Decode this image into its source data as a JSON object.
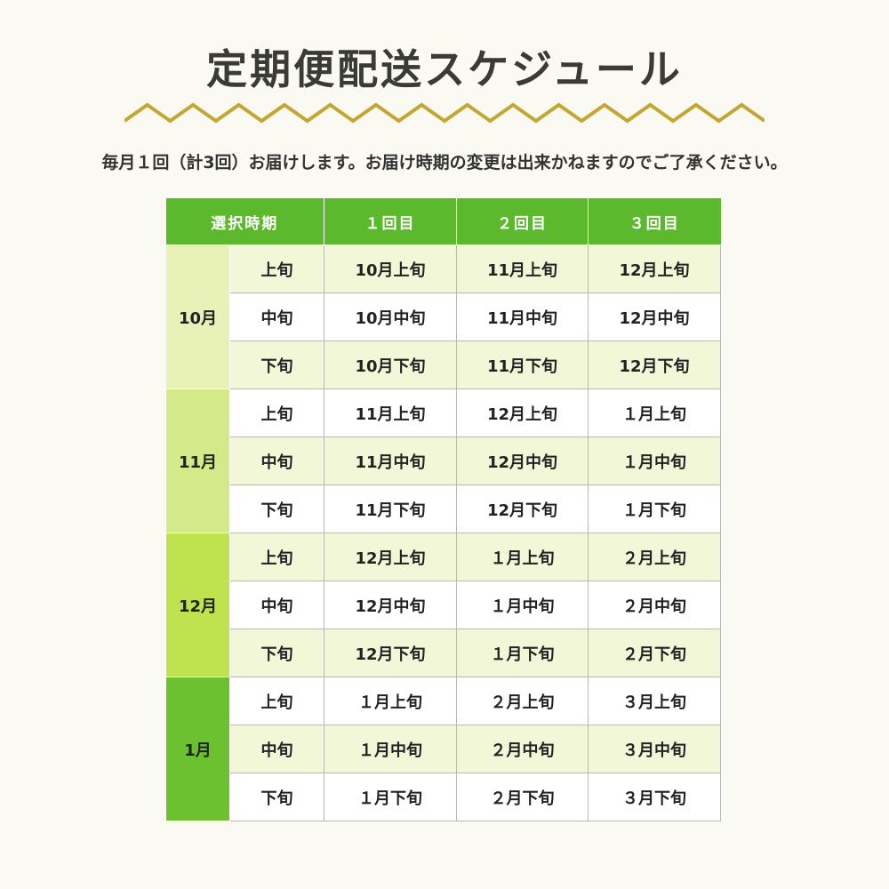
{
  "title": "定期便配送スケジュール",
  "subtitle": "毎月１回（計3回）お届けします。お届け時期の変更は出来かねますのでご了承ください。",
  "colors": {
    "header": "#5cb82c",
    "zigzag": "#c4a633",
    "month_bands": [
      "#e8f2b8",
      "#d4ea8a",
      "#bfe24f",
      "#6cc130"
    ]
  },
  "table": {
    "headers": [
      "選択時期",
      "１回目",
      "２回目",
      "３回目"
    ],
    "groups": [
      {
        "month": "10月",
        "rows": [
          {
            "period": "上旬",
            "cells": [
              "10月上旬",
              "11月上旬",
              "12月上旬"
            ]
          },
          {
            "period": "中旬",
            "cells": [
              "10月中旬",
              "11月中旬",
              "12月中旬"
            ]
          },
          {
            "period": "下旬",
            "cells": [
              "10月下旬",
              "11月下旬",
              "12月下旬"
            ]
          }
        ]
      },
      {
        "month": "11月",
        "rows": [
          {
            "period": "上旬",
            "cells": [
              "11月上旬",
              "12月上旬",
              "１月上旬"
            ]
          },
          {
            "period": "中旬",
            "cells": [
              "11月中旬",
              "12月中旬",
              "１月中旬"
            ]
          },
          {
            "period": "下旬",
            "cells": [
              "11月下旬",
              "12月下旬",
              "１月下旬"
            ]
          }
        ]
      },
      {
        "month": "12月",
        "rows": [
          {
            "period": "上旬",
            "cells": [
              "12月上旬",
              "１月上旬",
              "２月上旬"
            ]
          },
          {
            "period": "中旬",
            "cells": [
              "12月中旬",
              "１月中旬",
              "２月中旬"
            ]
          },
          {
            "period": "下旬",
            "cells": [
              "12月下旬",
              "１月下旬",
              "２月下旬"
            ]
          }
        ]
      },
      {
        "month": "1月",
        "rows": [
          {
            "period": "上旬",
            "cells": [
              "１月上旬",
              "２月上旬",
              "３月上旬"
            ]
          },
          {
            "period": "中旬",
            "cells": [
              "１月中旬",
              "２月中旬",
              "３月中旬"
            ]
          },
          {
            "period": "下旬",
            "cells": [
              "１月下旬",
              "２月下旬",
              "３月下旬"
            ]
          }
        ]
      }
    ]
  }
}
